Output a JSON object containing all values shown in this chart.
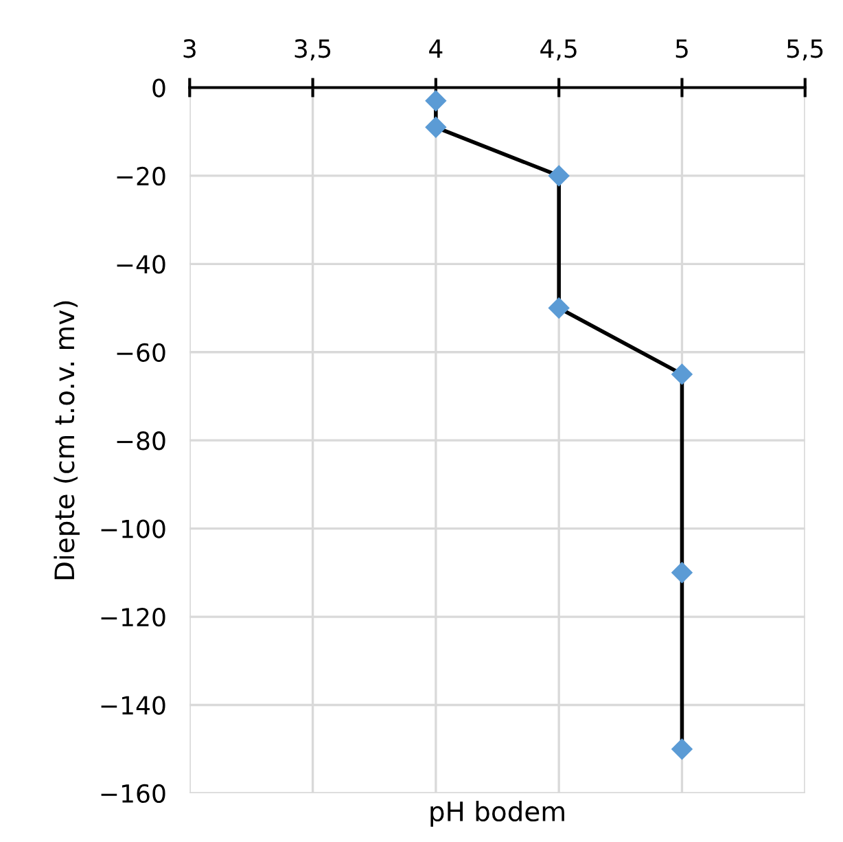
{
  "chart_data": {
    "type": "line",
    "xlabel": "pH bodem",
    "ylabel": "Diepte (cm t.o.v. mv)",
    "series": [
      {
        "x": [
          4,
          4,
          4.5,
          4.5,
          5,
          5,
          5
        ],
        "values": [
          -3,
          -9,
          -20,
          -50,
          -65,
          -110,
          -150
        ],
        "color": "#5b9bd5"
      }
    ],
    "xlim": [
      3,
      5.5
    ],
    "xticks": [
      3,
      {
        "value": 3.5,
        "label": "3,5"
      },
      4,
      {
        "value": 4.5,
        "label": "4,5"
      },
      5,
      {
        "value": 5.5,
        "label": "5,5"
      }
    ],
    "ylim": [
      -160,
      0
    ],
    "yticks": [
      0,
      {
        "value": -20,
        "label": "−20"
      },
      {
        "value": -40,
        "label": "−40"
      },
      {
        "value": -60,
        "label": "−60"
      },
      {
        "value": -80,
        "label": "−80"
      },
      {
        "value": -100,
        "label": "−100"
      },
      {
        "value": -120,
        "label": "−120"
      },
      {
        "value": -140,
        "label": "−140"
      },
      {
        "value": -160,
        "label": "−160"
      }
    ],
    "grid": true,
    "marker": "diamond",
    "line_style": "solid"
  }
}
